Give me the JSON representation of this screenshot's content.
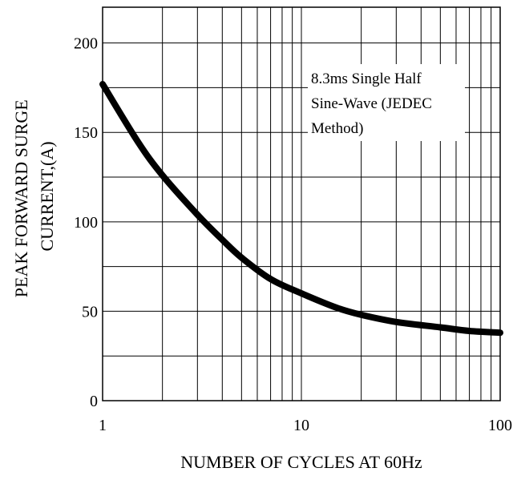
{
  "chart_data": {
    "type": "line",
    "title": "",
    "xlabel": "NUMBER OF CYCLES AT 60Hz",
    "ylabel": "PEAK FORWARD SURGE CURRENT,(A)",
    "ylabel_lines": [
      "PEAK FORWARD SURGE",
      "CURRENT,(A)"
    ],
    "x_scale": "log",
    "xlim": [
      1,
      100
    ],
    "ylim": [
      0,
      220
    ],
    "x_ticks": [
      1,
      10,
      100
    ],
    "y_ticks": [
      0,
      50,
      100,
      150,
      200
    ],
    "grid": true,
    "annotation_lines": [
      "8.3ms Single Half",
      "Sine-Wave (JEDEC",
      "Method)"
    ],
    "series": [
      {
        "color": "#000000",
        "x": [
          1,
          1.5,
          2,
          3,
          4,
          5,
          7,
          10,
          15,
          20,
          30,
          50,
          70,
          100
        ],
        "y": [
          177,
          145,
          126,
          104,
          90,
          80,
          68,
          60,
          52,
          48,
          44,
          41,
          39,
          38
        ]
      }
    ]
  }
}
